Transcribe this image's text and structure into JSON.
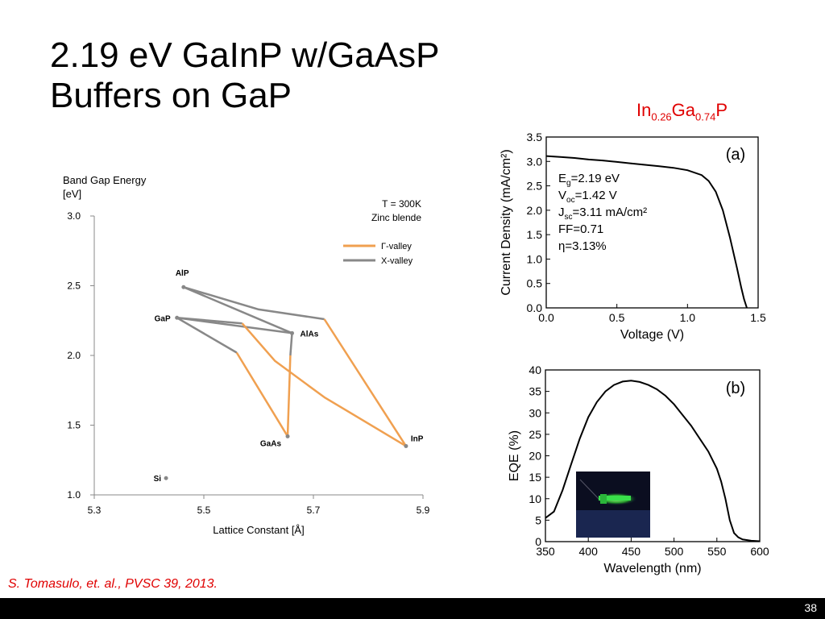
{
  "slide": {
    "title_line1": "2.19 eV GaInP w/GaAsP",
    "title_line2": "Buffers on GaP",
    "compound": {
      "in": "In",
      "in_sub": "0.26",
      "ga": "Ga",
      "ga_sub": "0.74",
      "p": "P"
    },
    "citation": "S. Tomasulo, et. al., PVSC 39, 2013.",
    "page_number": "38"
  },
  "colors": {
    "gamma": "#f0a050",
    "xvalley": "#888888",
    "accent_red": "#e00000"
  },
  "chart_data": [
    {
      "type": "line",
      "ylabel_line1": "Band Gap Energy",
      "ylabel_line2": "[eV]",
      "xlabel": "Lattice Constant [Å]",
      "xlim": [
        5.3,
        5.9
      ],
      "ylim": [
        1.0,
        3.0
      ],
      "xticks": [
        "5.3",
        "5.5",
        "5.7",
        "5.9"
      ],
      "yticks": [
        "3.0",
        "2.5",
        "2.0",
        "1.5",
        "1.0"
      ],
      "annotation_line1": "T = 300K",
      "annotation_line2": "Zinc blende",
      "legend": [
        {
          "name": "Γ-valley",
          "color": "#f0a050"
        },
        {
          "name": "X-valley",
          "color": "#888888"
        }
      ],
      "points": [
        {
          "label": "AlP",
          "x": 5.463,
          "y": 2.49
        },
        {
          "label": "GaP",
          "x": 5.451,
          "y": 2.27
        },
        {
          "label": "AlAs",
          "x": 5.661,
          "y": 2.16
        },
        {
          "label": "GaAs",
          "x": 5.653,
          "y": 1.42
        },
        {
          "label": "InP",
          "x": 5.869,
          "y": 1.35
        },
        {
          "label": "Si",
          "x": 5.431,
          "y": 1.12
        }
      ],
      "series": [
        {
          "name": "X-valley",
          "segments": [
            [
              [
                5.463,
                2.49
              ],
              [
                5.6,
                2.33
              ],
              [
                5.72,
                2.26
              ]
            ],
            [
              [
                5.463,
                2.49
              ],
              [
                5.661,
                2.16
              ]
            ],
            [
              [
                5.451,
                2.27
              ],
              [
                5.661,
                2.16
              ]
            ],
            [
              [
                5.451,
                2.27
              ],
              [
                5.57,
                2.23
              ]
            ],
            [
              [
                5.451,
                2.27
              ],
              [
                5.56,
                2.02
              ]
            ],
            [
              [
                5.661,
                2.16
              ],
              [
                5.658,
                2.0
              ]
            ]
          ]
        },
        {
          "name": "Γ-valley",
          "segments": [
            [
              [
                5.72,
                2.26
              ],
              [
                5.869,
                1.35
              ]
            ],
            [
              [
                5.57,
                2.23
              ],
              [
                5.63,
                1.96
              ],
              [
                5.72,
                1.7
              ],
              [
                5.869,
                1.35
              ]
            ],
            [
              [
                5.56,
                2.02
              ],
              [
                5.653,
                1.42
              ]
            ],
            [
              [
                5.653,
                1.42
              ],
              [
                5.658,
                2.0
              ]
            ]
          ]
        }
      ]
    },
    {
      "type": "line",
      "panel": "(a)",
      "xlabel": "Voltage (V)",
      "ylabel": "Current Density (mA/cm²)",
      "xlim": [
        0.0,
        1.5
      ],
      "ylim": [
        0.0,
        3.5
      ],
      "xticks": [
        "0.0",
        "0.5",
        "1.0",
        "1.5"
      ],
      "yticks": [
        "3.5",
        "3.0",
        "2.5",
        "2.0",
        "1.5",
        "1.0",
        "0.5",
        "0.0"
      ],
      "annotations": [
        {
          "main": "E",
          "sub": "g",
          "rest": "=2.19 eV"
        },
        {
          "main": "V",
          "sub": "oc",
          "rest": "=1.42 V"
        },
        {
          "main": "J",
          "sub": "sc",
          "rest": "=3.11 mA/cm²"
        },
        {
          "main": "FF=0.71",
          "sub": "",
          "rest": ""
        },
        {
          "main": "η=3.13%",
          "sub": "",
          "rest": ""
        }
      ],
      "x": [
        0.0,
        0.1,
        0.2,
        0.3,
        0.4,
        0.5,
        0.6,
        0.7,
        0.8,
        0.9,
        1.0,
        1.1,
        1.15,
        1.2,
        1.25,
        1.3,
        1.35,
        1.38,
        1.4,
        1.42
      ],
      "y": [
        3.11,
        3.09,
        3.07,
        3.04,
        3.02,
        2.99,
        2.96,
        2.93,
        2.9,
        2.87,
        2.82,
        2.72,
        2.6,
        2.38,
        2.0,
        1.45,
        0.82,
        0.42,
        0.18,
        0.0
      ]
    },
    {
      "type": "line",
      "panel": "(b)",
      "xlabel": "Wavelength (nm)",
      "ylabel": "EQE (%)",
      "xlim": [
        350,
        600
      ],
      "ylim": [
        0,
        40
      ],
      "xticks": [
        "350",
        "400",
        "450",
        "500",
        "550",
        "600"
      ],
      "yticks": [
        "40",
        "35",
        "30",
        "25",
        "20",
        "15",
        "10",
        "5",
        "0"
      ],
      "x": [
        350,
        360,
        370,
        380,
        390,
        400,
        410,
        420,
        430,
        440,
        450,
        460,
        470,
        480,
        490,
        500,
        510,
        520,
        530,
        540,
        550,
        555,
        560,
        565,
        570,
        575,
        580,
        590,
        600
      ],
      "y": [
        5.5,
        7,
        12,
        18,
        24,
        29,
        32.5,
        35,
        36.5,
        37.3,
        37.5,
        37.2,
        36.5,
        35.5,
        34,
        32,
        29.5,
        27,
        24,
        21,
        17,
        14,
        10,
        5,
        2,
        1,
        0.5,
        0.2,
        0.1
      ]
    }
  ]
}
